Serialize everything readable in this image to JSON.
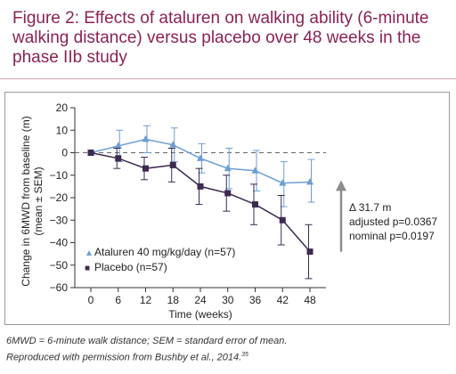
{
  "header": {
    "title": "Figure 2: Effects of ataluren on walking ability (6-minute walking distance) versus placebo over 48 weeks in the phase IIb study"
  },
  "footnote": {
    "line1": "6MWD = 6-minute walk distance; SEM = standard error of mean.",
    "line2": "Reproduced with permission from Bushby et al., 2014.",
    "ref": "35"
  },
  "colors": {
    "title": "#8b2252",
    "ataluren": "#6d9ed4",
    "placebo": "#3c2a4f",
    "arrow": "#8c8c8c"
  },
  "chart_data": {
    "type": "line",
    "x": [
      0,
      6,
      12,
      18,
      24,
      30,
      36,
      42,
      48
    ],
    "xticks": [
      "0",
      "6",
      "12",
      "18",
      "24",
      "30",
      "36",
      "42",
      "48"
    ],
    "xlabel": "Time (weeks)",
    "ylabel_line1": "Change in 6MWD from baseline (m)",
    "ylabel_line2": "(mean ± SEM)",
    "ylim": [
      -60,
      20
    ],
    "yticks": [
      "20",
      "10",
      "0",
      "−10",
      "−20",
      "−30",
      "−40",
      "−50",
      "−60"
    ],
    "ytick_values": [
      20,
      10,
      0,
      -10,
      -20,
      -30,
      -40,
      -50,
      -60
    ],
    "reference_line_y": 0,
    "series": [
      {
        "name": "Ataluren 40 mg/kg/day (n=57)",
        "marker": "triangle",
        "marker_glyph": "▲",
        "values": [
          0,
          3,
          6,
          3.5,
          -2.5,
          -7,
          -8,
          -13.5,
          -13
        ],
        "err_low": [
          0,
          -4,
          0,
          -4,
          -9,
          -16,
          -17,
          -24,
          -22
        ],
        "err_high": [
          0,
          10,
          12,
          11,
          4,
          2,
          1,
          -4,
          -3
        ]
      },
      {
        "name": "Placebo (n=57)",
        "marker": "square",
        "marker_glyph": "■",
        "values": [
          0,
          -2.5,
          -7,
          -5.5,
          -15,
          -18,
          -23,
          -30,
          -44
        ],
        "err_low": [
          0,
          -7,
          -12,
          -13,
          -23,
          -26,
          -32,
          -41,
          -56
        ],
        "err_high": [
          0,
          2,
          -2,
          2,
          -7,
          -10,
          -14,
          -19,
          -32
        ]
      }
    ],
    "legend_placement": "bottom-left",
    "annotation": {
      "delta": "Δ 31.7 m",
      "adjusted": "adjusted p=0.0367",
      "nominal": "nominal p=0.0197"
    }
  }
}
